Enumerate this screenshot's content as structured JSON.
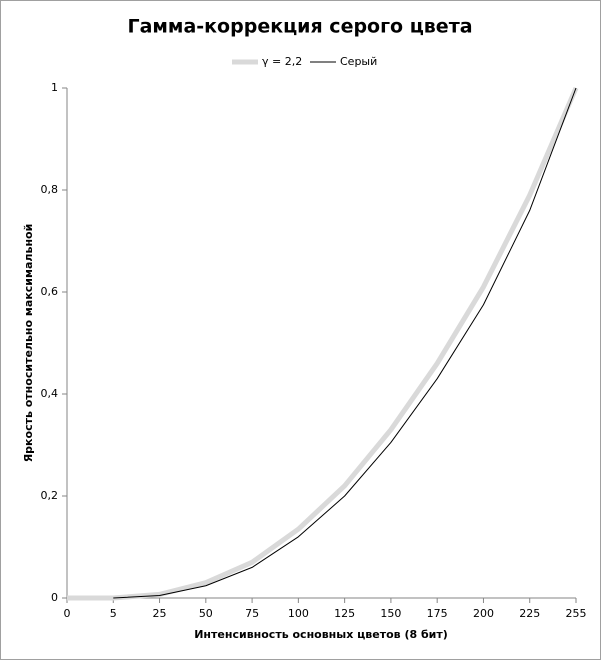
{
  "chart_data": {
    "type": "line",
    "title": "Гамма-коррекция серого цвета",
    "x_label": "Интенсивность  основных цветов  (8 бит)",
    "y_label": "Яркость  относительно  максимальной",
    "categories": [
      "0",
      "5",
      "25",
      "50",
      "75",
      "100",
      "125",
      "150",
      "175",
      "200",
      "225",
      "255"
    ],
    "series": [
      {
        "name": "γ = 2,2",
        "color": "#d9d9d9",
        "width": 5,
        "values": [
          0,
          0,
          0.007,
          0.03,
          0.07,
          0.135,
          0.22,
          0.33,
          0.46,
          0.61,
          0.79,
          1
        ]
      },
      {
        "name": "Серый",
        "color": "#000000",
        "width": 1,
        "values": [
          null,
          0,
          0.005,
          0.024,
          0.06,
          0.12,
          0.2,
          0.305,
          0.43,
          0.575,
          0.76,
          1
        ]
      }
    ],
    "ylim": [
      0,
      1
    ],
    "yticks": [
      0,
      {
        "value": 0.2,
        "label": "0,2"
      },
      {
        "value": 0.4,
        "label": "0,4"
      },
      {
        "value": 0.6,
        "label": "0,6"
      },
      {
        "value": 0.8,
        "label": "0,8"
      },
      1
    ],
    "legend": "top",
    "grid": false
  }
}
